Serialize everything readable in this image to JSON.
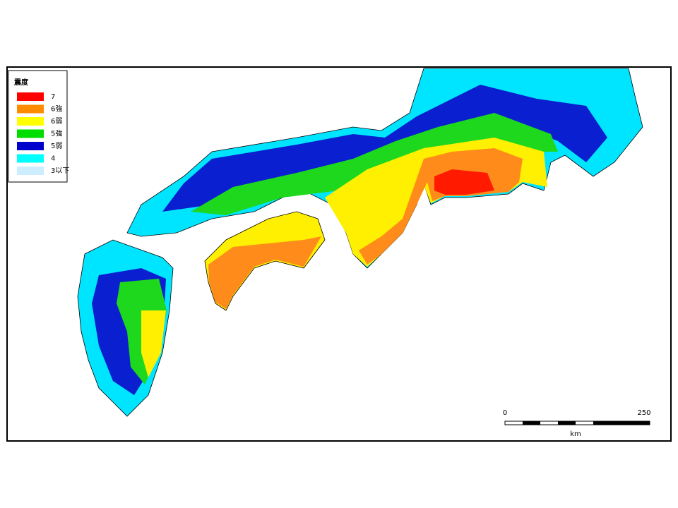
{
  "legend": {
    "title": "震度",
    "items": [
      {
        "label": "7",
        "color": "#ff0000"
      },
      {
        "label": "6強",
        "color": "#ff8c00"
      },
      {
        "label": "6弱",
        "color": "#ffff00"
      },
      {
        "label": "5強",
        "color": "#00dd00"
      },
      {
        "label": "5弱",
        "color": "#0000cc"
      },
      {
        "label": "4",
        "color": "#00ffff"
      },
      {
        "label": "3以下",
        "color": "#cceeff"
      }
    ]
  },
  "scale": {
    "start": "0",
    "end": "250",
    "unit": "km"
  }
}
